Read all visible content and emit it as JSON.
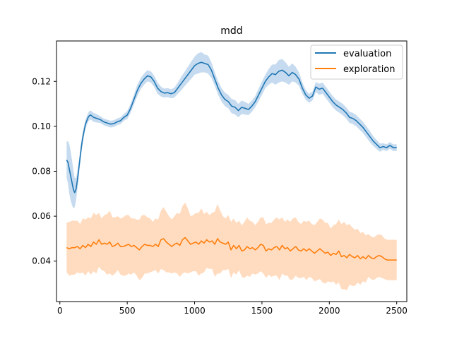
{
  "chart_data": {
    "type": "line",
    "title": "mdd",
    "xlabel": "",
    "ylabel": "",
    "xlim": [
      -25,
      2575
    ],
    "ylim": [
      0.022,
      0.138
    ],
    "xticks": [
      0,
      500,
      1000,
      1500,
      2000,
      2500
    ],
    "xtick_labels": [
      "0",
      "500",
      "1000",
      "1500",
      "2000",
      "2500"
    ],
    "yticks": [
      0.04,
      0.06,
      0.08,
      0.1,
      0.12
    ],
    "ytick_labels": [
      "0.04",
      "0.06",
      "0.08",
      "0.10",
      "0.12"
    ],
    "grid": false,
    "legend": "top-right",
    "series": [
      {
        "name": "evaluation",
        "color": "#1f77b4",
        "band_color": "#c6dbef",
        "x": [
          50,
          60,
          70,
          80,
          90,
          100,
          110,
          120,
          130,
          140,
          150,
          160,
          170,
          180,
          190,
          200,
          210,
          220,
          230,
          240,
          250,
          275,
          300,
          325,
          350,
          375,
          400,
          425,
          450,
          475,
          500,
          525,
          550,
          575,
          600,
          625,
          650,
          675,
          700,
          725,
          750,
          775,
          800,
          825,
          850,
          875,
          900,
          925,
          950,
          975,
          1000,
          1025,
          1050,
          1075,
          1100,
          1125,
          1150,
          1175,
          1200,
          1225,
          1250,
          1275,
          1300,
          1325,
          1350,
          1375,
          1400,
          1425,
          1450,
          1475,
          1500,
          1525,
          1550,
          1575,
          1600,
          1625,
          1650,
          1675,
          1700,
          1725,
          1750,
          1775,
          1800,
          1825,
          1850,
          1875,
          1900,
          1925,
          1950,
          1975,
          2000,
          2025,
          2050,
          2075,
          2100,
          2125,
          2150,
          2175,
          2200,
          2225,
          2250,
          2275,
          2300,
          2325,
          2350,
          2375,
          2400,
          2425,
          2450,
          2475,
          2500
        ],
        "y": [
          0.085,
          0.084,
          0.081,
          0.078,
          0.075,
          0.072,
          0.0705,
          0.072,
          0.076,
          0.081,
          0.086,
          0.091,
          0.095,
          0.098,
          0.101,
          0.1025,
          0.104,
          0.1048,
          0.105,
          0.1045,
          0.104,
          0.1035,
          0.103,
          0.102,
          0.1015,
          0.101,
          0.1012,
          0.102,
          0.1025,
          0.104,
          0.105,
          0.108,
          0.112,
          0.116,
          0.119,
          0.121,
          0.1225,
          0.122,
          0.12,
          0.117,
          0.1155,
          0.1148,
          0.115,
          0.1145,
          0.115,
          0.117,
          0.119,
          0.121,
          0.123,
          0.125,
          0.127,
          0.128,
          0.1285,
          0.128,
          0.1275,
          0.125,
          0.121,
          0.117,
          0.114,
          0.112,
          0.111,
          0.109,
          0.1085,
          0.107,
          0.1085,
          0.108,
          0.1075,
          0.109,
          0.111,
          0.114,
          0.117,
          0.12,
          0.122,
          0.1235,
          0.123,
          0.1245,
          0.125,
          0.124,
          0.1225,
          0.124,
          0.123,
          0.121,
          0.117,
          0.114,
          0.1125,
          0.1135,
          0.1175,
          0.1165,
          0.117,
          0.115,
          0.113,
          0.111,
          0.1095,
          0.1085,
          0.1075,
          0.106,
          0.104,
          0.1035,
          0.1025,
          0.101,
          0.0995,
          0.0975,
          0.0955,
          0.0935,
          0.092,
          0.0905,
          0.091,
          0.0905,
          0.0915,
          0.0905,
          0.0905
        ],
        "band": [
          0.008,
          0.0095,
          0.011,
          0.011,
          0.01,
          0.0085,
          0.0065,
          0.005,
          0.004,
          0.0035,
          0.003,
          0.0028,
          0.0025,
          0.0022,
          0.002,
          0.002,
          0.002,
          0.002,
          0.002,
          0.002,
          0.002,
          0.0018,
          0.0015,
          0.0015,
          0.0015,
          0.0015,
          0.0015,
          0.0015,
          0.0015,
          0.0015,
          0.0018,
          0.002,
          0.0022,
          0.0025,
          0.0025,
          0.0025,
          0.0025,
          0.0025,
          0.0025,
          0.0025,
          0.0022,
          0.002,
          0.002,
          0.002,
          0.0022,
          0.0025,
          0.003,
          0.0032,
          0.0035,
          0.0038,
          0.004,
          0.0045,
          0.0045,
          0.004,
          0.004,
          0.0035,
          0.003,
          0.003,
          0.003,
          0.003,
          0.003,
          0.0032,
          0.0032,
          0.003,
          0.003,
          0.0028,
          0.0025,
          0.0025,
          0.0025,
          0.0028,
          0.003,
          0.003,
          0.0035,
          0.004,
          0.0045,
          0.005,
          0.005,
          0.0045,
          0.004,
          0.004,
          0.0035,
          0.003,
          0.0025,
          0.0022,
          0.002,
          0.002,
          0.0022,
          0.0025,
          0.0025,
          0.0025,
          0.0025,
          0.0025,
          0.0025,
          0.0025,
          0.0025,
          0.0025,
          0.0025,
          0.0025,
          0.0025,
          0.0025,
          0.0025,
          0.0025,
          0.0025,
          0.0022,
          0.002,
          0.0018,
          0.0015,
          0.0015,
          0.0015,
          0.0015,
          0.0015
        ]
      },
      {
        "name": "exploration",
        "color": "#ff7f0e",
        "band_color": "#ffdcc0",
        "x": [
          50,
          70,
          90,
          110,
          130,
          150,
          170,
          190,
          210,
          230,
          250,
          270,
          290,
          310,
          330,
          350,
          370,
          390,
          410,
          430,
          450,
          470,
          490,
          510,
          530,
          550,
          570,
          590,
          610,
          630,
          650,
          670,
          690,
          710,
          730,
          750,
          770,
          790,
          810,
          830,
          850,
          870,
          890,
          910,
          930,
          950,
          970,
          990,
          1010,
          1030,
          1050,
          1070,
          1090,
          1110,
          1130,
          1150,
          1170,
          1190,
          1210,
          1230,
          1250,
          1270,
          1290,
          1310,
          1330,
          1350,
          1370,
          1390,
          1410,
          1430,
          1450,
          1470,
          1490,
          1510,
          1530,
          1550,
          1570,
          1590,
          1610,
          1630,
          1650,
          1670,
          1690,
          1710,
          1730,
          1750,
          1770,
          1790,
          1810,
          1830,
          1850,
          1870,
          1890,
          1910,
          1930,
          1950,
          1970,
          1990,
          2010,
          2030,
          2050,
          2070,
          2090,
          2110,
          2130,
          2150,
          2170,
          2190,
          2210,
          2230,
          2250,
          2270,
          2290,
          2310,
          2330,
          2350,
          2370,
          2390,
          2410,
          2430,
          2450,
          2470,
          2490,
          2500
        ],
        "y": [
          0.046,
          0.0455,
          0.046,
          0.046,
          0.0465,
          0.0455,
          0.047,
          0.046,
          0.0475,
          0.0465,
          0.0485,
          0.0475,
          0.0495,
          0.0475,
          0.048,
          0.0475,
          0.0485,
          0.0465,
          0.047,
          0.048,
          0.0465,
          0.0465,
          0.047,
          0.0475,
          0.0465,
          0.047,
          0.046,
          0.045,
          0.0465,
          0.0475,
          0.047,
          0.047,
          0.0465,
          0.0475,
          0.0465,
          0.0495,
          0.05,
          0.0485,
          0.0475,
          0.0465,
          0.0475,
          0.048,
          0.047,
          0.0495,
          0.0505,
          0.049,
          0.0475,
          0.048,
          0.0485,
          0.0475,
          0.049,
          0.048,
          0.0495,
          0.0485,
          0.049,
          0.0475,
          0.05,
          0.0485,
          0.048,
          0.0475,
          0.0485,
          0.045,
          0.047,
          0.0455,
          0.047,
          0.0445,
          0.045,
          0.0465,
          0.0455,
          0.046,
          0.045,
          0.046,
          0.0475,
          0.047,
          0.0445,
          0.0455,
          0.045,
          0.046,
          0.0465,
          0.045,
          0.047,
          0.0455,
          0.046,
          0.0445,
          0.0455,
          0.0465,
          0.045,
          0.0445,
          0.0455,
          0.0445,
          0.0455,
          0.0445,
          0.0435,
          0.0445,
          0.0455,
          0.0445,
          0.0435,
          0.044,
          0.0425,
          0.0435,
          0.043,
          0.0445,
          0.042,
          0.0425,
          0.0415,
          0.043,
          0.042,
          0.0415,
          0.0425,
          0.041,
          0.042,
          0.041,
          0.0425,
          0.0415,
          0.041,
          0.042,
          0.0425,
          0.042,
          0.041,
          0.0405,
          0.0405,
          0.0405,
          0.0405,
          0.0405
        ],
        "band": [
          0.011,
          0.012,
          0.012,
          0.012,
          0.0115,
          0.011,
          0.012,
          0.0125,
          0.012,
          0.0125,
          0.013,
          0.013,
          0.012,
          0.0115,
          0.0125,
          0.0135,
          0.014,
          0.013,
          0.0125,
          0.012,
          0.0125,
          0.013,
          0.0135,
          0.013,
          0.0125,
          0.012,
          0.0125,
          0.0135,
          0.014,
          0.013,
          0.0125,
          0.012,
          0.011,
          0.0115,
          0.012,
          0.013,
          0.014,
          0.0135,
          0.0125,
          0.012,
          0.0125,
          0.0135,
          0.014,
          0.015,
          0.0155,
          0.0145,
          0.0125,
          0.0125,
          0.013,
          0.014,
          0.0145,
          0.013,
          0.0125,
          0.012,
          0.0125,
          0.0145,
          0.0155,
          0.014,
          0.012,
          0.0115,
          0.012,
          0.0125,
          0.012,
          0.0115,
          0.011,
          0.0115,
          0.0125,
          0.013,
          0.0125,
          0.0115,
          0.011,
          0.0115,
          0.012,
          0.0125,
          0.012,
          0.0115,
          0.012,
          0.0125,
          0.013,
          0.0135,
          0.0125,
          0.012,
          0.0125,
          0.013,
          0.0135,
          0.013,
          0.0125,
          0.012,
          0.0125,
          0.013,
          0.0125,
          0.012,
          0.0125,
          0.013,
          0.0135,
          0.014,
          0.0135,
          0.013,
          0.012,
          0.0125,
          0.0135,
          0.014,
          0.0145,
          0.015,
          0.0145,
          0.0135,
          0.013,
          0.0125,
          0.012,
          0.0115,
          0.011,
          0.0105,
          0.0095,
          0.0095,
          0.0095,
          0.0095,
          0.0095,
          0.0095,
          0.009,
          0.009,
          0.009,
          0.009,
          0.009,
          0.009
        ]
      }
    ]
  }
}
